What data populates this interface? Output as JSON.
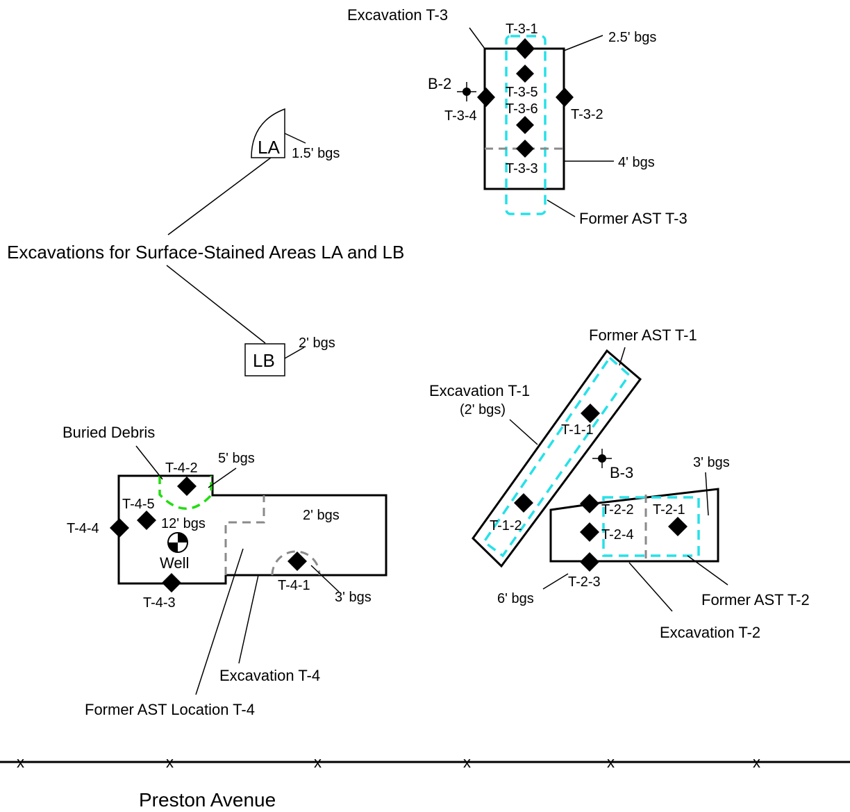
{
  "areas": {
    "la_label": "LA",
    "la_depth": "1.5' bgs",
    "lb_label": "LB",
    "lb_depth": "2' bgs",
    "la_lb_caption": "Excavations for Surface-Stained Areas LA and LB"
  },
  "t3": {
    "excavation": "Excavation T-3",
    "former_ast": "Former AST T-3",
    "depth_top": "2.5' bgs",
    "depth_bottom": "4' bgs",
    "samples": [
      "T-3-1",
      "T-3-2",
      "T-3-3",
      "T-3-4",
      "T-3-5",
      "T-3-6"
    ],
    "boring": "B-2"
  },
  "t1": {
    "excavation": "Excavation T-1",
    "depth": "(2' bgs)",
    "former_ast": "Former AST T-1",
    "samples": [
      "T-1-1",
      "T-1-2"
    ],
    "boring": "B-3"
  },
  "t2": {
    "excavation": "Excavation T-2",
    "former_ast": "Former AST T-2",
    "depth_right": "3' bgs",
    "depth_left": "6' bgs",
    "samples": [
      "T-2-1",
      "T-2-2",
      "T-2-3",
      "T-2-4"
    ]
  },
  "t4": {
    "excavation": "Excavation T-4",
    "former_ast": "Former AST Location T-4",
    "buried_debris": "Buried Debris",
    "depth_debris": "5' bgs",
    "depth_deep": "12' bgs",
    "depth_east": "2' bgs",
    "depth_ring": "3' bgs",
    "well": "Well",
    "samples": [
      "T-4-1",
      "T-4-2",
      "T-4-3",
      "T-4-4",
      "T-4-5"
    ]
  },
  "road": {
    "name": "Preston Avenue",
    "fence_marks": [
      "x",
      "x",
      "x",
      "x",
      "x",
      "x"
    ]
  },
  "colors": {
    "former_ast_outline": "#26e1e8",
    "excavation_subarea": "#8a8a8a",
    "buried_debris": "#22dd11",
    "linework": "#000000"
  },
  "icons": {
    "sample": "diamond-icon",
    "boring": "boring-crosshair-icon",
    "well": "monitoring-well-icon"
  }
}
